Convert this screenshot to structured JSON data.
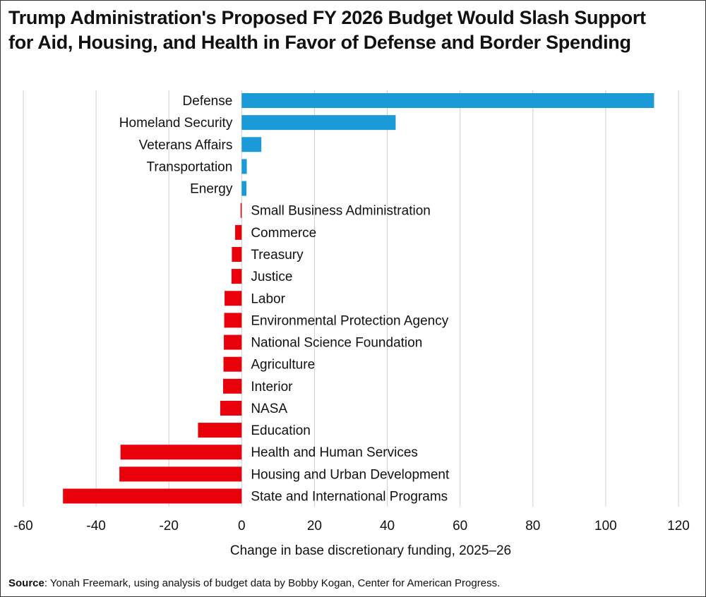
{
  "title_lines": [
    "Trump Administration's Proposed FY 2026 Budget Would Slash Support",
    "for Aid, Housing, and Health in Favor of Defense and Border Spending"
  ],
  "source": {
    "label": "Source",
    "text": ": Yonah Freemark, using analysis of budget data by Bobby Kogan, Center for American Progress."
  },
  "colors": {
    "positive": "#1a9bd7",
    "negative": "#e8000b",
    "grid": "#d0d0d0",
    "text": "#111111"
  },
  "chart_data": {
    "type": "bar",
    "orientation": "horizontal",
    "xlabel": "Change in base discretionary funding, 2025–26",
    "ylabel": "",
    "xlim": [
      -60,
      120
    ],
    "xticks": [
      -60,
      -40,
      -20,
      0,
      20,
      40,
      60,
      80,
      100,
      120
    ],
    "grid": true,
    "categories": [
      "Defense",
      "Homeland Security",
      "Veterans Affairs",
      "Transportation",
      "Energy",
      "Small Business Administration",
      "Commerce",
      "Treasury",
      "Justice",
      "Labor",
      "Environmental Protection Agency",
      "National Science Foundation",
      "Agriculture",
      "Interior",
      "NASA",
      "Education",
      "Health and Human Services",
      "Housing and Urban Development",
      "State and International Programs"
    ],
    "values": [
      113.3,
      42.3,
      5.4,
      1.4,
      1.3,
      -0.3,
      -1.8,
      -2.7,
      -2.8,
      -4.7,
      -4.8,
      -4.9,
      -5.0,
      -5.1,
      -5.9,
      -12.0,
      -33.3,
      -33.6,
      -49.1
    ]
  }
}
